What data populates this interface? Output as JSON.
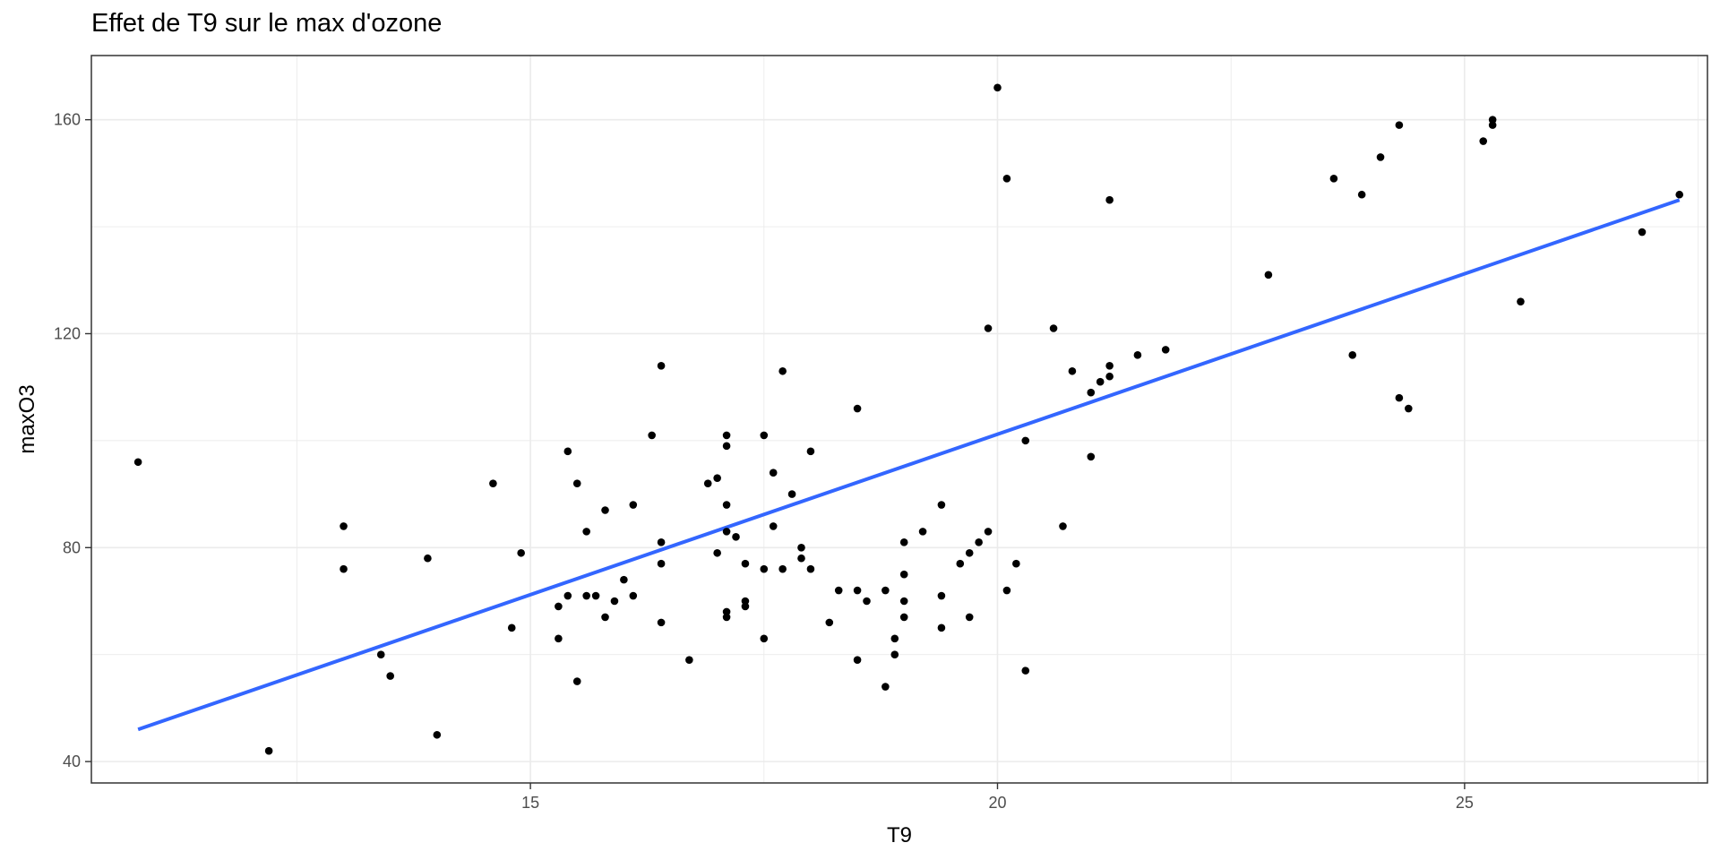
{
  "chart_data": {
    "type": "scatter",
    "title": "Effet de T9 sur le max d'ozone",
    "xlabel": "T9",
    "ylabel": "maxO3",
    "xlim": [
      10.3,
      27.6
    ],
    "ylim": [
      36,
      172
    ],
    "x_ticks": [
      15,
      20,
      25
    ],
    "y_ticks": [
      40,
      80,
      120,
      160
    ],
    "grid": true,
    "legend": "none",
    "colors": {
      "points": "#000000",
      "line": "#3366ff",
      "grid": "#ebebeb",
      "panel_border": "#333333"
    },
    "points": [
      {
        "x": 10.8,
        "y": 96
      },
      {
        "x": 12.2,
        "y": 42
      },
      {
        "x": 13.0,
        "y": 84
      },
      {
        "x": 13.0,
        "y": 76
      },
      {
        "x": 13.4,
        "y": 60
      },
      {
        "x": 13.5,
        "y": 56
      },
      {
        "x": 13.9,
        "y": 78
      },
      {
        "x": 14.0,
        "y": 45
      },
      {
        "x": 14.6,
        "y": 92
      },
      {
        "x": 14.8,
        "y": 65
      },
      {
        "x": 14.9,
        "y": 79
      },
      {
        "x": 15.3,
        "y": 69
      },
      {
        "x": 15.3,
        "y": 63
      },
      {
        "x": 15.4,
        "y": 98
      },
      {
        "x": 15.4,
        "y": 71
      },
      {
        "x": 15.5,
        "y": 92
      },
      {
        "x": 15.5,
        "y": 55
      },
      {
        "x": 15.6,
        "y": 83
      },
      {
        "x": 15.6,
        "y": 71
      },
      {
        "x": 15.7,
        "y": 71
      },
      {
        "x": 15.8,
        "y": 87
      },
      {
        "x": 15.8,
        "y": 67
      },
      {
        "x": 15.9,
        "y": 70
      },
      {
        "x": 16.0,
        "y": 74
      },
      {
        "x": 16.1,
        "y": 88
      },
      {
        "x": 16.1,
        "y": 71
      },
      {
        "x": 16.3,
        "y": 101
      },
      {
        "x": 16.4,
        "y": 114
      },
      {
        "x": 16.4,
        "y": 81
      },
      {
        "x": 16.4,
        "y": 77
      },
      {
        "x": 16.4,
        "y": 66
      },
      {
        "x": 16.7,
        "y": 59
      },
      {
        "x": 16.9,
        "y": 92
      },
      {
        "x": 17.0,
        "y": 93
      },
      {
        "x": 17.0,
        "y": 79
      },
      {
        "x": 17.1,
        "y": 101
      },
      {
        "x": 17.1,
        "y": 99
      },
      {
        "x": 17.1,
        "y": 88
      },
      {
        "x": 17.1,
        "y": 83
      },
      {
        "x": 17.1,
        "y": 68
      },
      {
        "x": 17.1,
        "y": 67
      },
      {
        "x": 17.2,
        "y": 82
      },
      {
        "x": 17.3,
        "y": 77
      },
      {
        "x": 17.3,
        "y": 70
      },
      {
        "x": 17.3,
        "y": 69
      },
      {
        "x": 17.5,
        "y": 101
      },
      {
        "x": 17.5,
        "y": 76
      },
      {
        "x": 17.5,
        "y": 63
      },
      {
        "x": 17.6,
        "y": 94
      },
      {
        "x": 17.6,
        "y": 84
      },
      {
        "x": 17.7,
        "y": 113
      },
      {
        "x": 17.7,
        "y": 76
      },
      {
        "x": 17.8,
        "y": 90
      },
      {
        "x": 17.9,
        "y": 80
      },
      {
        "x": 17.9,
        "y": 78
      },
      {
        "x": 18.0,
        "y": 98
      },
      {
        "x": 18.0,
        "y": 76
      },
      {
        "x": 18.2,
        "y": 66
      },
      {
        "x": 18.3,
        "y": 72
      },
      {
        "x": 18.5,
        "y": 106
      },
      {
        "x": 18.5,
        "y": 72
      },
      {
        "x": 18.5,
        "y": 59
      },
      {
        "x": 18.6,
        "y": 70
      },
      {
        "x": 18.8,
        "y": 72
      },
      {
        "x": 18.8,
        "y": 54
      },
      {
        "x": 18.9,
        "y": 63
      },
      {
        "x": 18.9,
        "y": 60
      },
      {
        "x": 19.0,
        "y": 81
      },
      {
        "x": 19.0,
        "y": 75
      },
      {
        "x": 19.0,
        "y": 70
      },
      {
        "x": 19.0,
        "y": 67
      },
      {
        "x": 19.2,
        "y": 83
      },
      {
        "x": 19.4,
        "y": 88
      },
      {
        "x": 19.4,
        "y": 71
      },
      {
        "x": 19.4,
        "y": 65
      },
      {
        "x": 19.6,
        "y": 77
      },
      {
        "x": 19.7,
        "y": 79
      },
      {
        "x": 19.7,
        "y": 67
      },
      {
        "x": 19.8,
        "y": 81
      },
      {
        "x": 19.9,
        "y": 121
      },
      {
        "x": 19.9,
        "y": 83
      },
      {
        "x": 20.0,
        "y": 166
      },
      {
        "x": 20.1,
        "y": 149
      },
      {
        "x": 20.1,
        "y": 72
      },
      {
        "x": 20.2,
        "y": 77
      },
      {
        "x": 20.3,
        "y": 100
      },
      {
        "x": 20.3,
        "y": 57
      },
      {
        "x": 20.6,
        "y": 121
      },
      {
        "x": 20.7,
        "y": 84
      },
      {
        "x": 20.8,
        "y": 113
      },
      {
        "x": 21.0,
        "y": 109
      },
      {
        "x": 21.0,
        "y": 97
      },
      {
        "x": 21.1,
        "y": 111
      },
      {
        "x": 21.2,
        "y": 145
      },
      {
        "x": 21.2,
        "y": 114
      },
      {
        "x": 21.2,
        "y": 112
      },
      {
        "x": 21.5,
        "y": 116
      },
      {
        "x": 21.8,
        "y": 117
      },
      {
        "x": 22.9,
        "y": 131
      },
      {
        "x": 23.6,
        "y": 149
      },
      {
        "x": 23.8,
        "y": 116
      },
      {
        "x": 23.9,
        "y": 146
      },
      {
        "x": 24.1,
        "y": 153
      },
      {
        "x": 24.3,
        "y": 159
      },
      {
        "x": 24.3,
        "y": 108
      },
      {
        "x": 24.4,
        "y": 106
      },
      {
        "x": 25.2,
        "y": 156
      },
      {
        "x": 25.3,
        "y": 160
      },
      {
        "x": 25.3,
        "y": 159
      },
      {
        "x": 25.6,
        "y": 126
      },
      {
        "x": 26.9,
        "y": 139
      },
      {
        "x": 27.3,
        "y": 146
      }
    ],
    "fit_line": {
      "x": [
        10.8,
        27.3
      ],
      "y": [
        46,
        145
      ]
    }
  }
}
